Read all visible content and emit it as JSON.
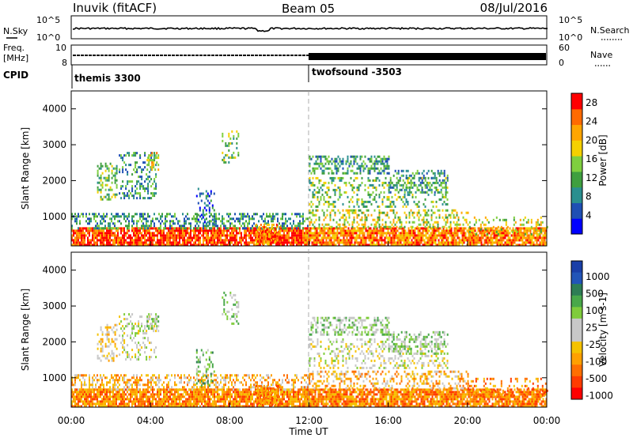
{
  "header": {
    "station": "Inuvik (fitACF)",
    "beam": "Beam 05",
    "date": "08/Jul/2016"
  },
  "noise_panel": {
    "left_label": "N.Sky",
    "right_label": "N.Search",
    "left_ticks": [
      "10^5",
      "10^0"
    ],
    "right_ticks": [
      "10^5",
      "10^0"
    ]
  },
  "freq_panel": {
    "left_label_1": "Freq.",
    "left_label_2": "[MHz]",
    "left_ticks": [
      "10",
      "8"
    ],
    "right_label": "Nave",
    "right_ticks": [
      "60",
      "0"
    ],
    "cpid_label": "CPID"
  },
  "cpid_segments": [
    {
      "label": "themis 3300",
      "start_hour": 0
    },
    {
      "label": "twofsound -3503",
      "start_hour": 12
    }
  ],
  "colors": {
    "power": [
      "#0000ff",
      "#1f4fb4",
      "#2a8f8f",
      "#3f9f3f",
      "#7fcf3f",
      "#f5d000",
      "#ffa500",
      "#ff6a00",
      "#ff0000"
    ],
    "velocity": [
      "#1a3fa8",
      "#2255b8",
      "#2e7d55",
      "#49a84a",
      "#7fcc3c",
      "#c8c8c8",
      "#c8c8c8",
      "#f5c200",
      "#ffa000",
      "#ff6f00",
      "#ff3c00",
      "#ff0000"
    ]
  },
  "chart_data": [
    {
      "type": "heatmap",
      "title": "Power",
      "ylabel": "Slant Range [km]",
      "xlabel": "",
      "x_range_hours": [
        0,
        24
      ],
      "ylim": [
        180,
        4500
      ],
      "y_ticks": [
        1000,
        2000,
        3000,
        4000
      ],
      "colorbar_label": "Power [dB]",
      "colorbar_range": [
        0,
        30
      ],
      "colorbar_ticks": [
        4,
        8,
        12,
        16,
        20,
        24,
        28
      ]
    },
    {
      "type": "heatmap",
      "title": "Velocity",
      "ylabel": "Slant Range [km]",
      "xlabel": "Time UT",
      "x_range_hours": [
        0,
        24
      ],
      "x_tick_labels": [
        "00:00",
        "04:00",
        "08:00",
        "12:00",
        "16:00",
        "20:00",
        "00:00"
      ],
      "ylim": [
        180,
        4500
      ],
      "y_ticks": [
        1000,
        2000,
        3000,
        4000
      ],
      "colorbar_label": "Velocity [m s-1]",
      "colorbar_ticks": [
        "1000",
        "500",
        "100",
        "25",
        "-25",
        "-100",
        "-500",
        "-1000"
      ]
    }
  ]
}
